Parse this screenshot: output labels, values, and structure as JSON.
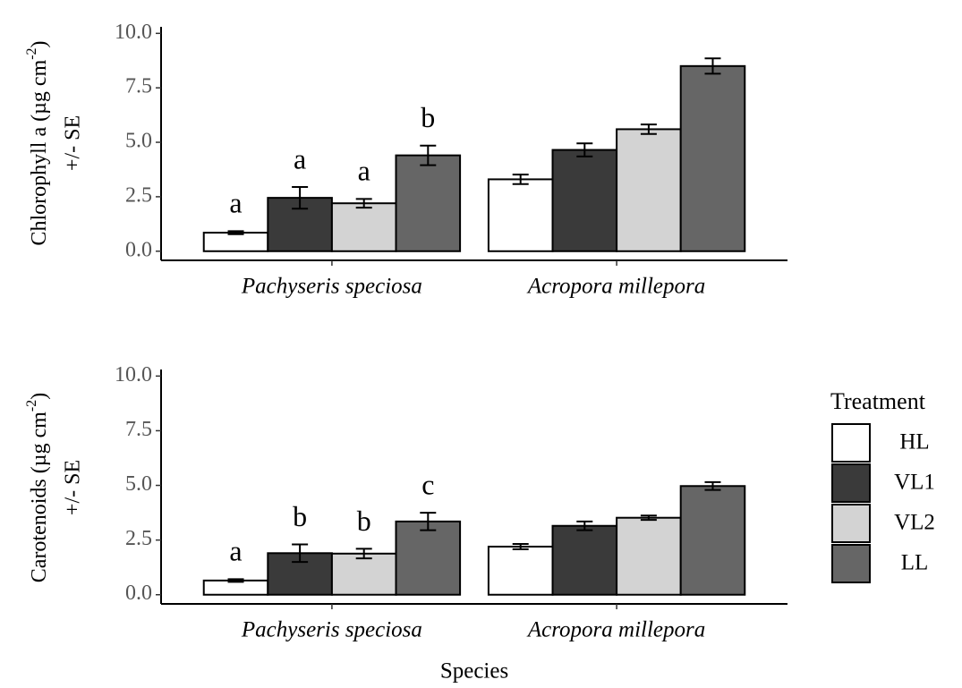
{
  "chart_data": [
    {
      "type": "bar",
      "ylabel": {
        "text": "Chlorophyll a (µg cm",
        "superscript": "-2",
        "close": ")",
        "line2": "+/- SE"
      },
      "categories": [
        "Pachyseris speciosa",
        "Acropora millepora"
      ],
      "ylim": [
        -0.42,
        10.3
      ],
      "yticks": [
        {
          "value": 0,
          "label": "0.0"
        },
        2.5,
        {
          "value": 5,
          "label": "5.0"
        },
        7.5,
        {
          "value": 10,
          "label": "10.0"
        }
      ],
      "series": [
        {
          "name": "HL",
          "color": "#ffffff",
          "values": [
            0.85,
            3.3
          ],
          "errors": [
            0.07,
            0.22
          ],
          "annotations": [
            "a",
            null
          ]
        },
        {
          "name": "VL1",
          "color": "#3a3a3a",
          "values": [
            2.45,
            4.65
          ],
          "errors": [
            0.5,
            0.3
          ],
          "annotations": [
            "a",
            null
          ]
        },
        {
          "name": "VL2",
          "color": "#d3d3d3",
          "values": [
            2.2,
            5.6
          ],
          "errors": [
            0.2,
            0.22
          ],
          "annotations": [
            "a",
            null
          ]
        },
        {
          "name": "LL",
          "color": "#666666",
          "values": [
            4.4,
            8.5
          ],
          "errors": [
            0.45,
            0.35
          ],
          "annotations": [
            "b",
            null
          ]
        }
      ]
    },
    {
      "type": "bar",
      "ylabel": {
        "text": "Carotenoids (µg cm",
        "superscript": "-2",
        "close": ")",
        "line2": "+/- SE"
      },
      "xlabel": "Species",
      "categories": [
        "Pachyseris speciosa",
        "Acropora millepora"
      ],
      "ylim": [
        -0.42,
        10.3
      ],
      "yticks": [
        {
          "value": 0,
          "label": "0.0"
        },
        2.5,
        {
          "value": 5,
          "label": "5.0"
        },
        7.5,
        {
          "value": 10,
          "label": "10.0"
        }
      ],
      "legend": "right",
      "legend_title": "Treatment",
      "series": [
        {
          "name": "HL",
          "color": "#ffffff",
          "values": [
            0.65,
            2.2
          ],
          "errors": [
            0.06,
            0.12
          ],
          "annotations": [
            "a",
            null
          ]
        },
        {
          "name": "VL1",
          "color": "#3a3a3a",
          "values": [
            1.9,
            3.15
          ],
          "errors": [
            0.4,
            0.2
          ],
          "annotations": [
            "b",
            null
          ]
        },
        {
          "name": "VL2",
          "color": "#d3d3d3",
          "values": [
            1.88,
            3.52
          ],
          "errors": [
            0.22,
            0.1
          ],
          "annotations": [
            "b",
            null
          ]
        },
        {
          "name": "LL",
          "color": "#666666",
          "values": [
            3.35,
            4.97
          ],
          "errors": [
            0.4,
            0.18
          ],
          "annotations": [
            "c",
            null
          ]
        }
      ]
    }
  ]
}
